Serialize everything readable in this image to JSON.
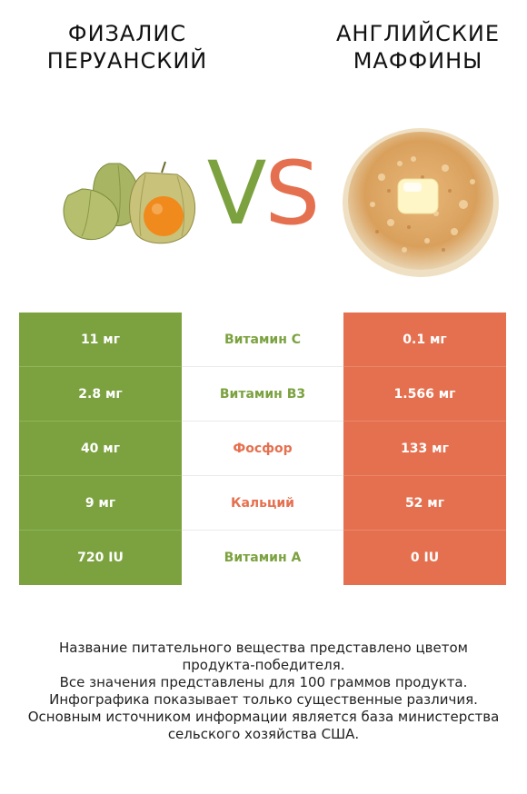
{
  "header": {
    "left_title_line1": "ФИЗАЛИС",
    "left_title_line2": "ПЕРУАНСКИЙ",
    "right_title_line1": "АНГЛИЙСКИЕ",
    "right_title_line2": "МАФФИНЫ",
    "vs_v": "V",
    "vs_s": "S"
  },
  "colors": {
    "left_green": "#7ba23f",
    "right_red": "#e5704f"
  },
  "table": {
    "rows": [
      {
        "left": "11 мг",
        "nutrient": "Витамин C",
        "winner": "left",
        "right": "0.1 мг"
      },
      {
        "left": "2.8 мг",
        "nutrient": "Витамин B3",
        "winner": "left",
        "right": "1.566 мг"
      },
      {
        "left": "40 мг",
        "nutrient": "Фосфор",
        "winner": "right",
        "right": "133 мг"
      },
      {
        "left": "9 мг",
        "nutrient": "Кальций",
        "winner": "right",
        "right": "52 мг"
      },
      {
        "left": "720 IU",
        "nutrient": "Витамин A",
        "winner": "left",
        "right": "0 IU"
      }
    ]
  },
  "footnote": {
    "line1": "Название питательного вещества представлено цветом",
    "line2": "продукта-победителя.",
    "line3": "Все значения представлены для 100 граммов продукта.",
    "line4": "Инфографика показывает только существенные различия.",
    "line5": "Основным источником информации является база министерства",
    "line6": "сельского хозяйства США."
  },
  "images": {
    "left": "physalis-fruit-image",
    "right": "english-muffin-image"
  }
}
